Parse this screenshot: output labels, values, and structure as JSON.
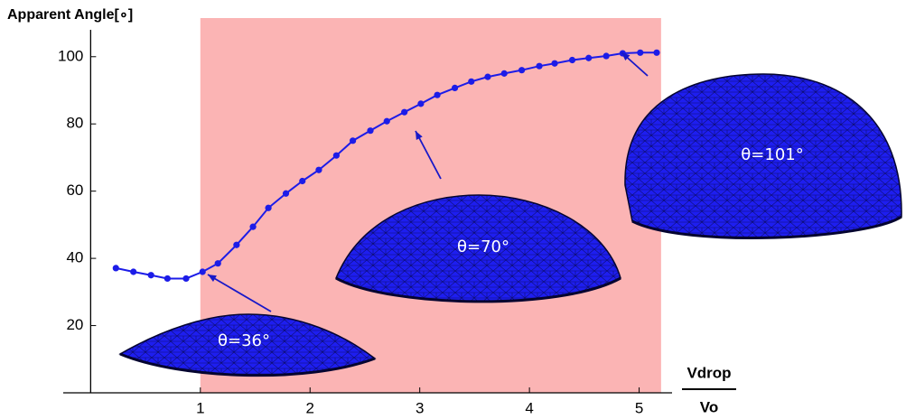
{
  "chart_data": {
    "type": "line",
    "y_label": "Apparent Angle[∘]",
    "x_label": {
      "numerator": "Vdrop",
      "denominator": "Vo"
    },
    "x": [
      0.23,
      0.39,
      0.55,
      0.7,
      0.87,
      1.02,
      1.16,
      1.33,
      1.48,
      1.62,
      1.78,
      1.93,
      2.08,
      2.24,
      2.39,
      2.55,
      2.7,
      2.86,
      3.01,
      3.16,
      3.32,
      3.47,
      3.62,
      3.77,
      3.93,
      4.09,
      4.23,
      4.39,
      4.54,
      4.7,
      4.85,
      5.01,
      5.16
    ],
    "values": [
      37.1,
      36,
      35,
      34,
      34,
      36,
      38.5,
      44,
      49.4,
      55,
      59.3,
      63,
      66.3,
      70.6,
      75,
      78,
      80.8,
      83.5,
      86,
      88.6,
      90.7,
      92.6,
      94,
      95,
      96,
      97.2,
      98,
      99,
      99.6,
      100.2,
      101,
      101.2,
      101.2
    ],
    "color": "#1c1ce8",
    "xlim": [
      -0.25,
      5.3
    ],
    "ylim": [
      0,
      108
    ],
    "xticks": [
      1,
      2,
      3,
      4,
      5
    ],
    "yticks": [
      20,
      40,
      60,
      80,
      100
    ],
    "highlight_xrange": [
      1,
      5.2
    ],
    "highlight_color": "#fbb4b4",
    "annotations": [
      "θ=36°",
      "θ=70°",
      "θ=101°"
    ]
  }
}
